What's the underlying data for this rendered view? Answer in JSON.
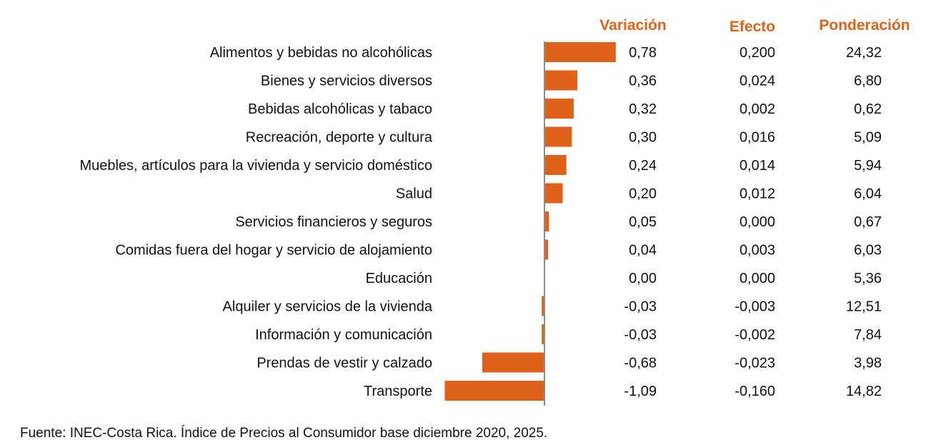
{
  "chart_data": {
    "type": "bar",
    "orientation": "horizontal",
    "title": "",
    "xlabel": "",
    "ylabel": "",
    "grid": false,
    "legend": "none",
    "bar_color": "#E0621A",
    "header_color": "#E0621A",
    "columns": {
      "variacion": "Variación",
      "efecto": "Efecto",
      "ponderacion": "Ponderación"
    },
    "categories": [
      "Alimentos y bebidas no alcohólicas",
      "Bienes y servicios diversos",
      "Bebidas alcohólicas y tabaco",
      "Recreación, deporte y cultura",
      "Muebles, artículos para la vivienda y servicio doméstico",
      "Salud",
      "Servicios financieros y seguros",
      "Comidas fuera del hogar y servicio de alojamiento",
      "Educación",
      "Alquiler y servicios de la vivienda",
      "Información y comunicación",
      "Prendas de vestir y calzado",
      "Transporte"
    ],
    "values": [
      0.78,
      0.36,
      0.32,
      0.3,
      0.24,
      0.2,
      0.05,
      0.04,
      0.0,
      -0.03,
      -0.03,
      -0.68,
      -1.09
    ],
    "variacion_labels": [
      "0,78",
      "0,36",
      "0,32",
      "0,30",
      "0,24",
      "0,20",
      "0,05",
      "0,04",
      "0,00",
      "-0,03",
      "-0,03",
      "-0,68",
      "-1,09"
    ],
    "efecto_labels": [
      "0,200",
      "0,024",
      "0,002",
      "0,016",
      "0,014",
      "0,012",
      "0,000",
      "0,003",
      "0,000",
      "-0,003",
      "-0,002",
      "-0,023",
      "-0,160"
    ],
    "ponderacion_labels": [
      "24,32",
      "6,80",
      "0,62",
      "5,09",
      "5,94",
      "6,04",
      "0,67",
      "6,03",
      "5,36",
      "12,51",
      "7,84",
      "3,98",
      "14,82"
    ],
    "xlim": [
      -1.12,
      0.8
    ]
  },
  "source": "Fuente: INEC-Costa Rica. Índice de Precios al Consumidor base diciembre 2020, 2025."
}
